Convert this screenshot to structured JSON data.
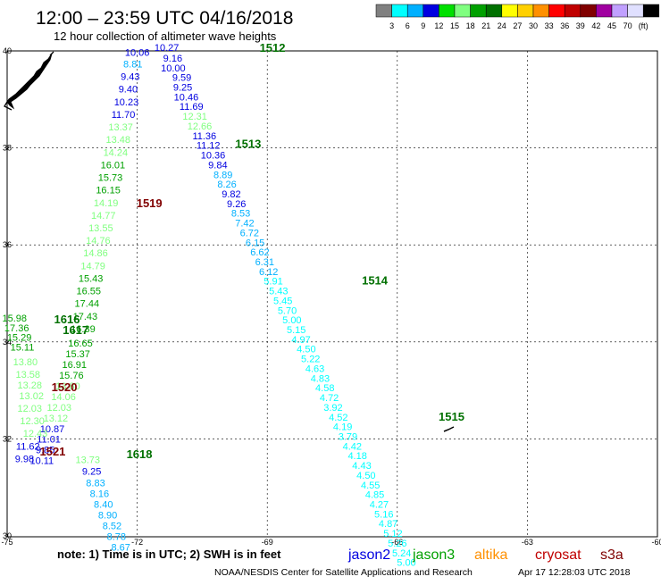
{
  "header": {
    "title": "12:00 – 23:59 UTC 04/16/2018",
    "subtitle": "12 hour collection of altimeter wave heights"
  },
  "color_scale": {
    "colors": [
      "#808080",
      "#00ffff",
      "#00b0ff",
      "#0000e0",
      "#00e000",
      "#80ff80",
      "#00a000",
      "#007000",
      "#ffff00",
      "#ffd000",
      "#ff9000",
      "#ff0000",
      "#c00000",
      "#800000",
      "#a000a0",
      "#c0a0ff",
      "#e0e0ff",
      "#000000"
    ],
    "labels": [
      "3",
      "6",
      "9",
      "12",
      "15",
      "18",
      "21",
      "24",
      "27",
      "30",
      "33",
      "36",
      "39",
      "42",
      "45",
      "70",
      "(ft)"
    ]
  },
  "map": {
    "lon_ticks": [
      "-75",
      "-72",
      "-69",
      "-66",
      "-63",
      "-60"
    ],
    "lat_ticks": [
      "40",
      "38",
      "36",
      "34",
      "32",
      "30"
    ]
  },
  "observations": [
    {
      "t": "10.27",
      "lon": -71.32,
      "lat": 40.0,
      "c": "#0000e0"
    },
    {
      "t": "9.16",
      "lon": -71.18,
      "lat": 39.78,
      "c": "#0000e0"
    },
    {
      "t": "10.00",
      "lon": -71.17,
      "lat": 39.58,
      "c": "#0000e0"
    },
    {
      "t": "9.59",
      "lon": -70.97,
      "lat": 39.38,
      "c": "#0000e0"
    },
    {
      "t": "9.25",
      "lon": -70.95,
      "lat": 39.18,
      "c": "#0000e0"
    },
    {
      "t": "10.46",
      "lon": -70.87,
      "lat": 38.98,
      "c": "#0000e0"
    },
    {
      "t": "11.69",
      "lon": -70.75,
      "lat": 38.78,
      "c": "#0000e0"
    },
    {
      "t": "12.31",
      "lon": -70.67,
      "lat": 38.58,
      "c": "#80ff80"
    },
    {
      "t": "12.66",
      "lon": -70.56,
      "lat": 38.38,
      "c": "#80ff80"
    },
    {
      "t": "11.36",
      "lon": -70.45,
      "lat": 38.18,
      "c": "#0000e0"
    },
    {
      "t": "11.12",
      "lon": -70.36,
      "lat": 37.98,
      "c": "#0000e0"
    },
    {
      "t": "10.36",
      "lon": -70.25,
      "lat": 37.78,
      "c": "#0000e0"
    },
    {
      "t": "9.84",
      "lon": -70.14,
      "lat": 37.58,
      "c": "#0000e0"
    },
    {
      "t": "8.89",
      "lon": -70.02,
      "lat": 37.38,
      "c": "#00b0ff"
    },
    {
      "t": "8.26",
      "lon": -69.93,
      "lat": 37.18,
      "c": "#00b0ff"
    },
    {
      "t": "9.82",
      "lon": -69.83,
      "lat": 36.98,
      "c": "#0000e0"
    },
    {
      "t": "9.26",
      "lon": -69.71,
      "lat": 36.78,
      "c": "#0000e0"
    },
    {
      "t": "8.53",
      "lon": -69.61,
      "lat": 36.58,
      "c": "#00b0ff"
    },
    {
      "t": "7.42",
      "lon": -69.52,
      "lat": 36.38,
      "c": "#00b0ff"
    },
    {
      "t": "6.72",
      "lon": -69.41,
      "lat": 36.18,
      "c": "#00b0ff"
    },
    {
      "t": "6.15",
      "lon": -69.28,
      "lat": 35.98,
      "c": "#00b0ff"
    },
    {
      "t": "6.62",
      "lon": -69.17,
      "lat": 35.78,
      "c": "#00b0ff"
    },
    {
      "t": "6.31",
      "lon": -69.06,
      "lat": 35.58,
      "c": "#00b0ff"
    },
    {
      "t": "6.12",
      "lon": -68.97,
      "lat": 35.38,
      "c": "#00b0ff"
    },
    {
      "t": "5.91",
      "lon": -68.86,
      "lat": 35.18,
      "c": "#00ffff"
    },
    {
      "t": "5.43",
      "lon": -68.74,
      "lat": 34.98,
      "c": "#00ffff"
    },
    {
      "t": "5.45",
      "lon": -68.64,
      "lat": 34.78,
      "c": "#00ffff"
    },
    {
      "t": "5.70",
      "lon": -68.54,
      "lat": 34.58,
      "c": "#00ffff"
    },
    {
      "t": "5.00",
      "lon": -68.43,
      "lat": 34.38,
      "c": "#00ffff"
    },
    {
      "t": "5.15",
      "lon": -68.33,
      "lat": 34.18,
      "c": "#00ffff"
    },
    {
      "t": "4.97",
      "lon": -68.22,
      "lat": 33.98,
      "c": "#00ffff"
    },
    {
      "t": "4.50",
      "lon": -68.1,
      "lat": 33.78,
      "c": "#00ffff"
    },
    {
      "t": "5.22",
      "lon": -68.0,
      "lat": 33.58,
      "c": "#00ffff"
    },
    {
      "t": "4.63",
      "lon": -67.9,
      "lat": 33.38,
      "c": "#00ffff"
    },
    {
      "t": "4.83",
      "lon": -67.78,
      "lat": 33.18,
      "c": "#00ffff"
    },
    {
      "t": "4.58",
      "lon": -67.67,
      "lat": 32.98,
      "c": "#00ffff"
    },
    {
      "t": "4.72",
      "lon": -67.57,
      "lat": 32.78,
      "c": "#00ffff"
    },
    {
      "t": "3.92",
      "lon": -67.48,
      "lat": 32.58,
      "c": "#00ffff"
    },
    {
      "t": "4.52",
      "lon": -67.36,
      "lat": 32.38,
      "c": "#00ffff"
    },
    {
      "t": "4.19",
      "lon": -67.26,
      "lat": 32.18,
      "c": "#00ffff"
    },
    {
      "t": "3.79",
      "lon": -67.14,
      "lat": 31.98,
      "c": "#00ffff"
    },
    {
      "t": "4.42",
      "lon": -67.04,
      "lat": 31.78,
      "c": "#00ffff"
    },
    {
      "t": "4.18",
      "lon": -66.92,
      "lat": 31.58,
      "c": "#00ffff"
    },
    {
      "t": "4.43",
      "lon": -66.82,
      "lat": 31.38,
      "c": "#00ffff"
    },
    {
      "t": "4.50",
      "lon": -66.72,
      "lat": 31.18,
      "c": "#00ffff"
    },
    {
      "t": "4.55",
      "lon": -66.62,
      "lat": 30.98,
      "c": "#00ffff"
    },
    {
      "t": "4.85",
      "lon": -66.52,
      "lat": 30.78,
      "c": "#00ffff"
    },
    {
      "t": "4.27",
      "lon": -66.42,
      "lat": 30.58,
      "c": "#00ffff"
    },
    {
      "t": "5.16",
      "lon": -66.31,
      "lat": 30.38,
      "c": "#00ffff"
    },
    {
      "t": "4.87",
      "lon": -66.21,
      "lat": 30.18,
      "c": "#00ffff"
    },
    {
      "t": "5.12",
      "lon": -66.1,
      "lat": 29.98,
      "c": "#00ffff"
    },
    {
      "t": "5.26",
      "lon": -66.0,
      "lat": 29.78,
      "c": "#00ffff"
    },
    {
      "t": "5.24",
      "lon": -65.9,
      "lat": 29.58,
      "c": "#00ffff"
    },
    {
      "t": "5.00",
      "lon": -65.79,
      "lat": 29.38,
      "c": "#00ffff"
    },
    {
      "t": "10.06",
      "lon": -72.0,
      "lat": 39.9,
      "c": "#0000e0"
    },
    {
      "t": "8.81",
      "lon": -72.1,
      "lat": 39.66,
      "c": "#00b0ff"
    },
    {
      "t": "9.43",
      "lon": -72.16,
      "lat": 39.4,
      "c": "#0000e0"
    },
    {
      "t": "9.40",
      "lon": -72.21,
      "lat": 39.14,
      "c": "#0000e0"
    },
    {
      "t": "10.23",
      "lon": -72.25,
      "lat": 38.88,
      "c": "#0000e0"
    },
    {
      "t": "11.70",
      "lon": -72.32,
      "lat": 38.62,
      "c": "#0000e0"
    },
    {
      "t": "13.37",
      "lon": -72.38,
      "lat": 38.36,
      "c": "#80ff80"
    },
    {
      "t": "13.48",
      "lon": -72.44,
      "lat": 38.1,
      "c": "#80ff80"
    },
    {
      "t": "14.24",
      "lon": -72.5,
      "lat": 37.84,
      "c": "#80ff80"
    },
    {
      "t": "16.01",
      "lon": -72.56,
      "lat": 37.58,
      "c": "#00a000"
    },
    {
      "t": "15.73",
      "lon": -72.62,
      "lat": 37.32,
      "c": "#00a000"
    },
    {
      "t": "16.15",
      "lon": -72.67,
      "lat": 37.06,
      "c": "#00a000"
    },
    {
      "t": "14.19",
      "lon": -72.72,
      "lat": 36.8,
      "c": "#80ff80"
    },
    {
      "t": "14.77",
      "lon": -72.78,
      "lat": 36.54,
      "c": "#80ff80"
    },
    {
      "t": "13.55",
      "lon": -72.84,
      "lat": 36.28,
      "c": "#80ff80"
    },
    {
      "t": "14.76",
      "lon": -72.9,
      "lat": 36.02,
      "c": "#80ff80"
    },
    {
      "t": "14.86",
      "lon": -72.96,
      "lat": 35.76,
      "c": "#80ff80"
    },
    {
      "t": "14.79",
      "lon": -73.02,
      "lat": 35.5,
      "c": "#80ff80"
    },
    {
      "t": "15.43",
      "lon": -73.07,
      "lat": 35.24,
      "c": "#00a000"
    },
    {
      "t": "16.55",
      "lon": -73.12,
      "lat": 34.98,
      "c": "#00a000"
    },
    {
      "t": "17.44",
      "lon": -73.16,
      "lat": 34.72,
      "c": "#00a000"
    },
    {
      "t": "17.43",
      "lon": -73.2,
      "lat": 34.46,
      "c": "#00a000"
    },
    {
      "t": "16.39",
      "lon": -73.25,
      "lat": 34.2,
      "c": "#00a000"
    },
    {
      "t": "16.65",
      "lon": -73.31,
      "lat": 33.9,
      "c": "#00a000"
    },
    {
      "t": "15.37",
      "lon": -73.37,
      "lat": 33.68,
      "c": "#00a000"
    },
    {
      "t": "16.91",
      "lon": -73.45,
      "lat": 33.46,
      "c": "#00a000"
    },
    {
      "t": "15.76",
      "lon": -73.52,
      "lat": 33.24,
      "c": "#00a000"
    },
    {
      "t": "13.80",
      "lon": -73.6,
      "lat": 33.02,
      "c": "#80ff80"
    },
    {
      "t": "14.06",
      "lon": -73.7,
      "lat": 32.8,
      "c": "#80ff80"
    },
    {
      "t": "12.03",
      "lon": -73.8,
      "lat": 32.58,
      "c": "#80ff80"
    },
    {
      "t": "13.12",
      "lon": -73.88,
      "lat": 32.36,
      "c": "#80ff80"
    },
    {
      "t": "10.87",
      "lon": -73.96,
      "lat": 32.14,
      "c": "#0000e0"
    },
    {
      "t": "11.01",
      "lon": -74.04,
      "lat": 31.92,
      "c": "#0000e0"
    },
    {
      "t": "9.85",
      "lon": -74.12,
      "lat": 31.7,
      "c": "#0000e0"
    },
    {
      "t": "10.11",
      "lon": -74.2,
      "lat": 31.48,
      "c": "#0000e0"
    },
    {
      "t": "15.98",
      "lon": -74.83,
      "lat": 34.42,
      "c": "#00a000"
    },
    {
      "t": "17.36",
      "lon": -74.78,
      "lat": 34.22,
      "c": "#00a000"
    },
    {
      "t": "15.29",
      "lon": -74.72,
      "lat": 34.02,
      "c": "#00a000"
    },
    {
      "t": "15.11",
      "lon": -74.65,
      "lat": 33.82,
      "c": "#00a000"
    },
    {
      "t": "13.80",
      "lon": -74.58,
      "lat": 33.52,
      "c": "#80ff80"
    },
    {
      "t": "13.58",
      "lon": -74.52,
      "lat": 33.26,
      "c": "#80ff80"
    },
    {
      "t": "13.28",
      "lon": -74.48,
      "lat": 33.04,
      "c": "#80ff80"
    },
    {
      "t": "13.02",
      "lon": -74.44,
      "lat": 32.82,
      "c": "#80ff80"
    },
    {
      "t": "12.03",
      "lon": -74.48,
      "lat": 32.56,
      "c": "#80ff80"
    },
    {
      "t": "12.30",
      "lon": -74.42,
      "lat": 32.3,
      "c": "#80ff80"
    },
    {
      "t": "12.43",
      "lon": -74.35,
      "lat": 32.04,
      "c": "#80ff80"
    },
    {
      "t": "11.62",
      "lon": -74.52,
      "lat": 31.78,
      "c": "#0000e0"
    },
    {
      "t": "9.98",
      "lon": -74.6,
      "lat": 31.52,
      "c": "#0000e0"
    },
    {
      "t": "13.73",
      "lon": -73.14,
      "lat": 31.5,
      "c": "#80ff80"
    },
    {
      "t": "9.25",
      "lon": -73.05,
      "lat": 31.26,
      "c": "#0000e0"
    },
    {
      "t": "8.83",
      "lon": -72.96,
      "lat": 31.02,
      "c": "#00b0ff"
    },
    {
      "t": "8.16",
      "lon": -72.87,
      "lat": 30.8,
      "c": "#00b0ff"
    },
    {
      "t": "8.40",
      "lon": -72.78,
      "lat": 30.58,
      "c": "#00b0ff"
    },
    {
      "t": "8.90",
      "lon": -72.68,
      "lat": 30.36,
      "c": "#00b0ff"
    },
    {
      "t": "8.52",
      "lon": -72.58,
      "lat": 30.14,
      "c": "#00b0ff"
    },
    {
      "t": "8.78",
      "lon": -72.48,
      "lat": 29.92,
      "c": "#00b0ff"
    },
    {
      "t": "8.67",
      "lon": -72.38,
      "lat": 29.7,
      "c": "#00b0ff"
    }
  ],
  "track_labels": [
    {
      "t": "1512",
      "lon": -68.88,
      "lat": 39.98,
      "c": "#007000"
    },
    {
      "t": "1513",
      "lon": -69.44,
      "lat": 38.0,
      "c": "#007000"
    },
    {
      "t": "1514",
      "lon": -66.52,
      "lat": 35.18,
      "c": "#007000"
    },
    {
      "t": "1515",
      "lon": -64.75,
      "lat": 32.38,
      "c": "#007000"
    },
    {
      "t": "1519",
      "lon": -71.72,
      "lat": 36.78,
      "c": "#800000"
    },
    {
      "t": "1520",
      "lon": -73.68,
      "lat": 32.98,
      "c": "#800000"
    },
    {
      "t": "1521",
      "lon": -73.95,
      "lat": 31.66,
      "c": "#800000"
    },
    {
      "t": "1616",
      "lon": -73.62,
      "lat": 34.38,
      "c": "#007000"
    },
    {
      "t": "1617",
      "lon": -73.42,
      "lat": 34.16,
      "c": "#007000"
    },
    {
      "t": "1618",
      "lon": -71.95,
      "lat": 31.6,
      "c": "#007000"
    }
  ],
  "footer": {
    "note": "note: 1) Time is in UTC; 2) SWH is in feet",
    "legend": [
      {
        "t": "jason2",
        "c": "#0000e0"
      },
      {
        "t": "jason3",
        "c": "#00a000"
      },
      {
        "t": "altika",
        "c": "#ff9000"
      },
      {
        "t": "cryosat",
        "c": "#c00000"
      },
      {
        "t": "s3a",
        "c": "#800000"
      }
    ],
    "credit": "NOAA/NESDIS Center for Satellite Applications and Research",
    "timestamp": "Apr 17 12:28:03 UTC 2018"
  }
}
